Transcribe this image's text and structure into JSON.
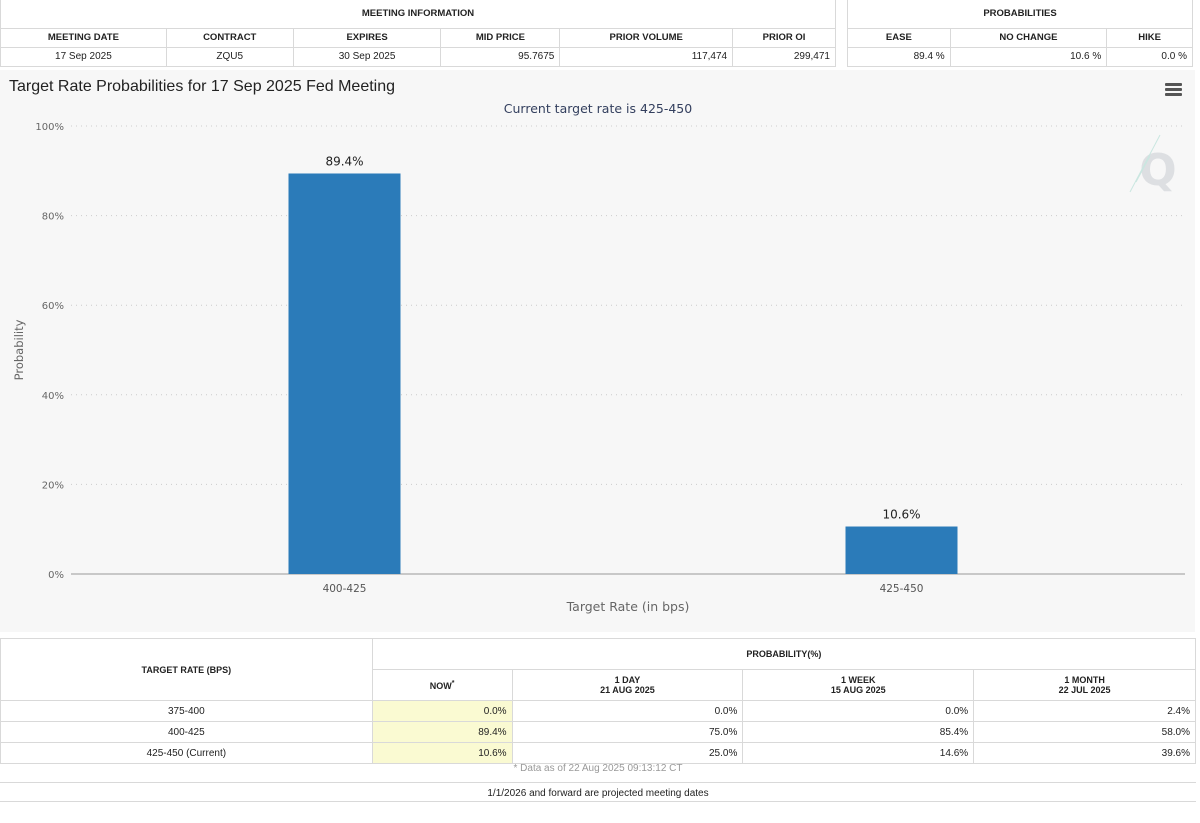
{
  "meeting_info": {
    "header": "MEETING INFORMATION",
    "columns": [
      "MEETING DATE",
      "CONTRACT",
      "EXPIRES",
      "MID PRICE",
      "PRIOR VOLUME",
      "PRIOR OI"
    ],
    "values": [
      "17 Sep 2025",
      "ZQU5",
      "30 Sep 2025",
      "95.7675",
      "117,474",
      "299,471"
    ]
  },
  "probabilities": {
    "header": "PROBABILITIES",
    "columns": [
      "EASE",
      "NO CHANGE",
      "HIKE"
    ],
    "values": [
      "89.4 %",
      "10.6 %",
      "0.0 %"
    ]
  },
  "chart_data": {
    "type": "bar",
    "title": "Target Rate Probabilities for 17 Sep 2025 Fed Meeting",
    "subtitle": "Current target rate is 425-450",
    "xlabel": "Target Rate (in bps)",
    "ylabel": "Probability",
    "categories": [
      "400-425",
      "425-450"
    ],
    "values": [
      89.4,
      10.6
    ],
    "value_labels": [
      "89.4%",
      "10.6%"
    ],
    "ylim": [
      0,
      100
    ],
    "yticks": [
      "0%",
      "20%",
      "40%",
      "60%",
      "80%",
      "100%"
    ],
    "bar_color": "#2b7bb9",
    "grid": true
  },
  "prob_table": {
    "target_header": "TARGET RATE (BPS)",
    "prob_header": "PROBABILITY(%)",
    "now_label": "NOW",
    "now_mark": "*",
    "periods": [
      {
        "line1": "1 DAY",
        "line2": "21 AUG 2025"
      },
      {
        "line1": "1 WEEK",
        "line2": "15 AUG 2025"
      },
      {
        "line1": "1 MONTH",
        "line2": "22 JUL 2025"
      }
    ],
    "rows": [
      {
        "rate": "375-400",
        "now": "0.0%",
        "d1": "0.0%",
        "w1": "0.0%",
        "m1": "2.4%"
      },
      {
        "rate": "400-425",
        "now": "89.4%",
        "d1": "75.0%",
        "w1": "85.4%",
        "m1": "58.0%"
      },
      {
        "rate": "425-450 (Current)",
        "now": "10.6%",
        "d1": "25.0%",
        "w1": "14.6%",
        "m1": "39.6%"
      }
    ],
    "footnote": "* Data as of 22 Aug 2025 09:13:12 CT",
    "projected_note": "1/1/2026 and forward are projected meeting dates"
  }
}
